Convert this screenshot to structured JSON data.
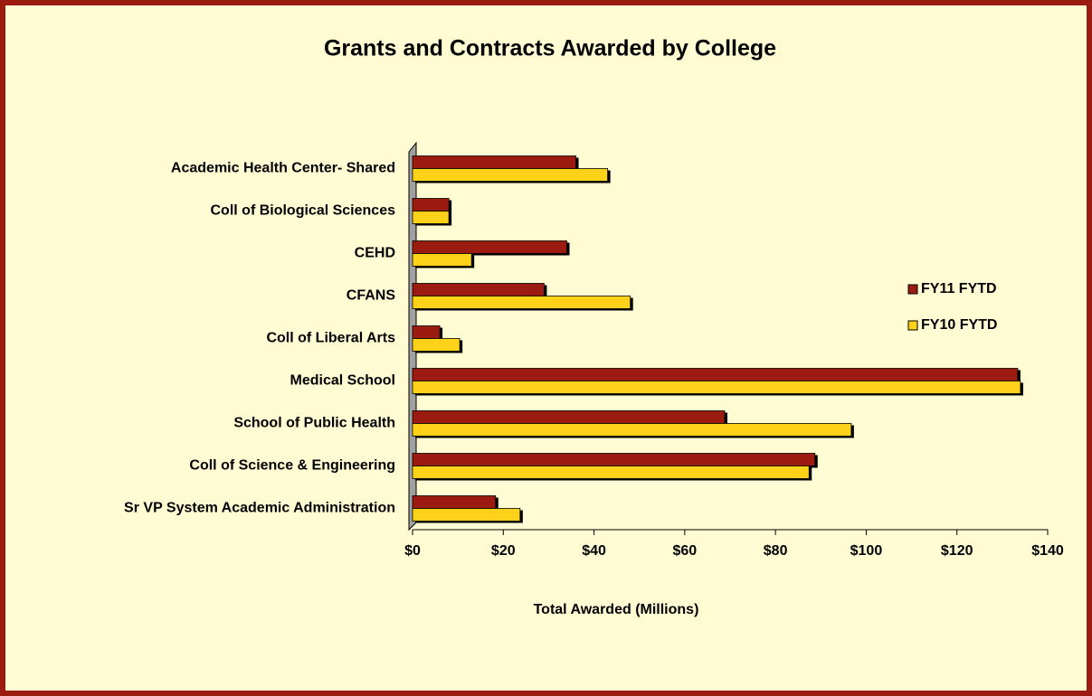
{
  "chart_data": {
    "type": "barh",
    "title": "Grants and Contracts Awarded by College",
    "xlabel": "Total Awarded (Millions)",
    "categories": [
      "Academic Health Center- Shared",
      "Coll of Biological Sciences",
      "CEHD",
      "CFANS",
      "Coll of Liberal Arts",
      "Medical School",
      "School of Public Health",
      "Coll of Science & Engineering",
      "Sr VP System Academic Administration"
    ],
    "series": [
      {
        "name": "FY11 FYTD",
        "color": "#9b1b10",
        "values": [
          36,
          8,
          34,
          29,
          6,
          133.4,
          68.8,
          88.7,
          18.3
        ]
      },
      {
        "name": "FY10 FYTD",
        "color": "#ffd21a",
        "values": [
          43,
          8,
          13,
          48,
          10.4,
          134,
          96.7,
          87.4,
          23.7
        ]
      }
    ],
    "xlim": [
      0,
      140
    ],
    "xticks": [
      {
        "value": 0,
        "label": "$0"
      },
      {
        "value": 20,
        "label": "$20"
      },
      {
        "value": 40,
        "label": "$40"
      },
      {
        "value": 60,
        "label": "$60"
      },
      {
        "value": 80,
        "label": "$80"
      },
      {
        "value": 100,
        "label": "$100"
      },
      {
        "value": 120,
        "label": "$120"
      },
      {
        "value": 140,
        "label": "$140"
      }
    ],
    "legend": "right"
  }
}
